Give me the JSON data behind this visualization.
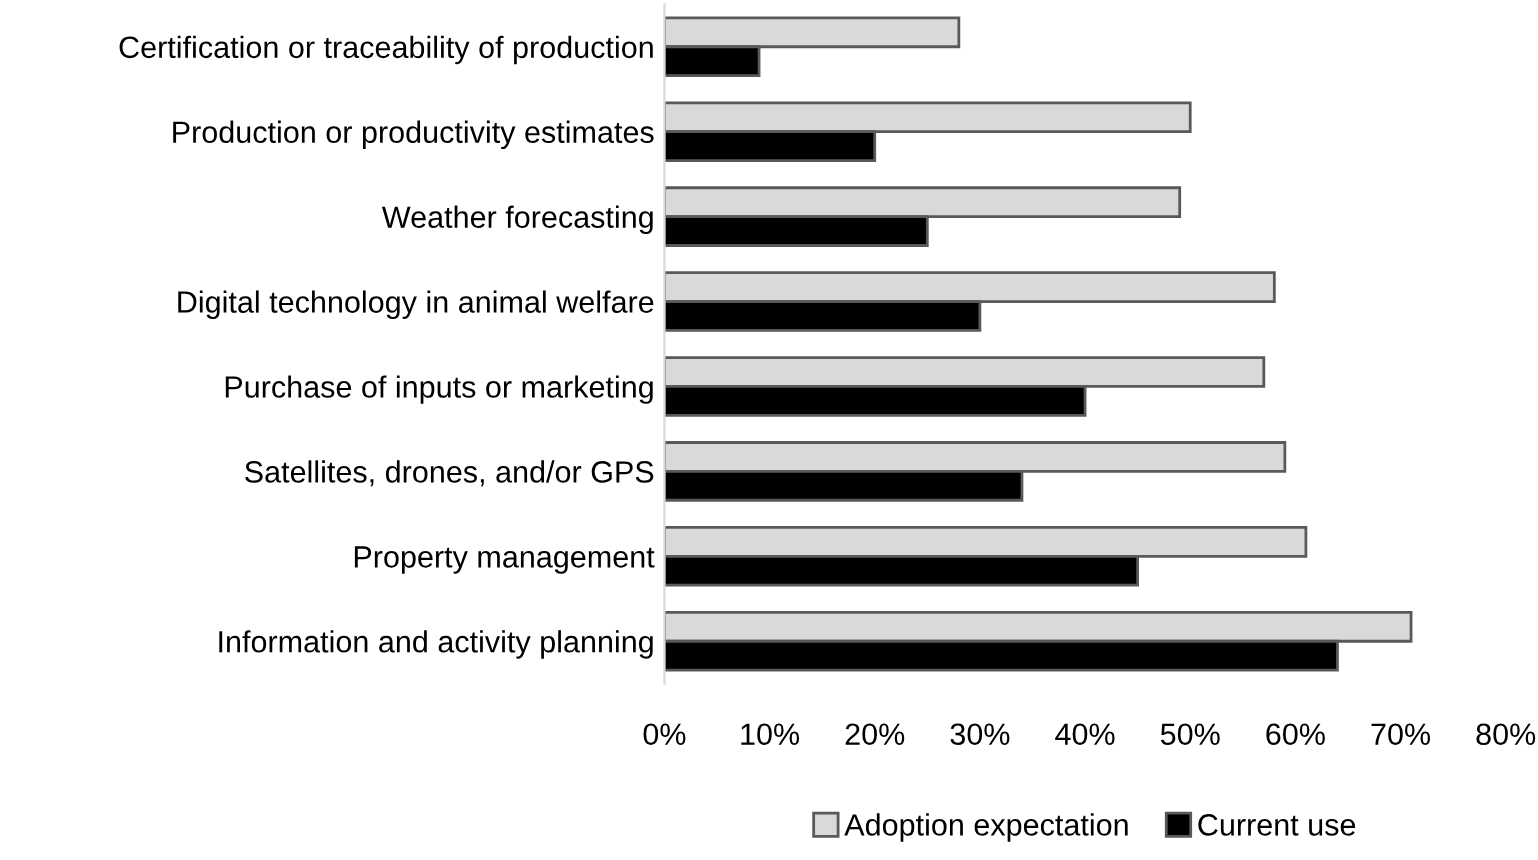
{
  "chart_data": {
    "type": "bar",
    "orientation": "horizontal",
    "categories": [
      "Certification or traceability of production",
      "Production or productivity estimates",
      "Weather forecasting",
      "Digital technology in animal welfare",
      "Purchase of inputs or marketing",
      "Satellites, drones, and/or GPS",
      "Property management",
      "Information and activity planning"
    ],
    "series": [
      {
        "name": "Adoption expectation",
        "color": "#d9d9d9",
        "values": [
          28,
          50,
          49,
          58,
          57,
          59,
          61,
          71
        ]
      },
      {
        "name": "Current use",
        "color": "#000000",
        "values": [
          9,
          20,
          25,
          30,
          40,
          34,
          45,
          64
        ]
      }
    ],
    "xlim": [
      0,
      80
    ],
    "xticks": [
      {
        "value": 0,
        "label": "0%"
      },
      {
        "value": 10,
        "label": "10%"
      },
      {
        "value": 20,
        "label": "20%"
      },
      {
        "value": 30,
        "label": "30%"
      },
      {
        "value": 40,
        "label": "40%"
      },
      {
        "value": 50,
        "label": "50%"
      },
      {
        "value": 60,
        "label": "60%"
      },
      {
        "value": 70,
        "label": "70%"
      },
      {
        "value": 80,
        "label": "80%"
      }
    ],
    "grid": false,
    "legend": "bottom"
  }
}
